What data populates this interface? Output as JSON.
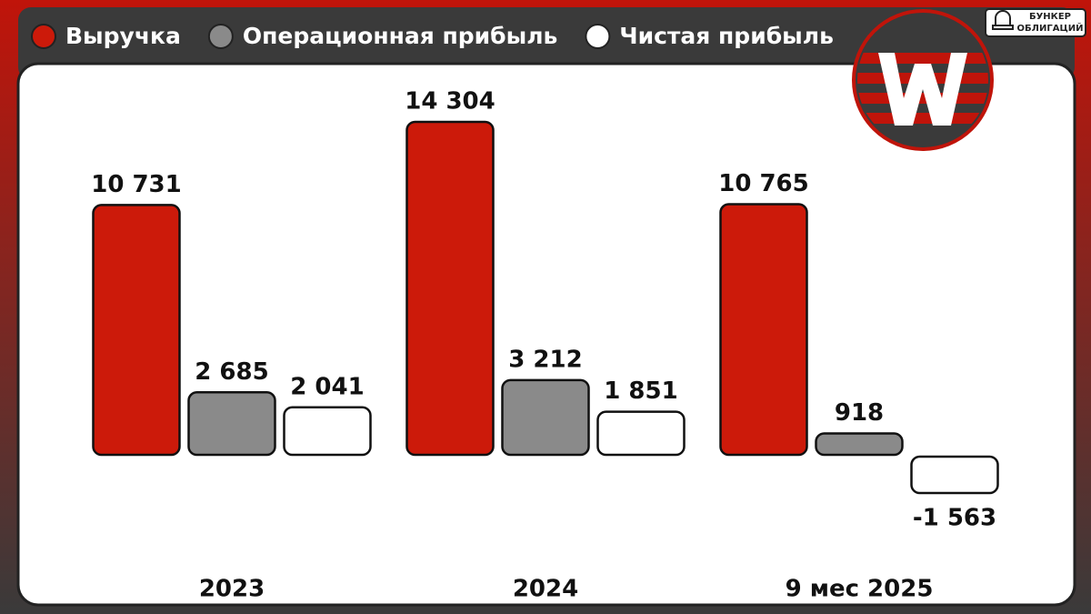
{
  "chart_data": {
    "type": "bar",
    "categories": [
      "2023",
      "2024",
      "9 мес 2025"
    ],
    "series": [
      {
        "name": "Выручка",
        "color": "#cc1a0a",
        "values": [
          10731,
          14304,
          10765
        ],
        "value_labels": [
          "10 731",
          "14 304",
          "10 765"
        ]
      },
      {
        "name": "Операционная прибыль",
        "color": "#8a8a8a",
        "values": [
          2685,
          3212,
          918
        ],
        "value_labels": [
          "2 685",
          "3 212",
          "918"
        ]
      },
      {
        "name": "Чистая прибыль",
        "color": "#ffffff",
        "values": [
          2041,
          1851,
          -1563
        ],
        "value_labels": [
          "2 041",
          "1 851",
          "-1 563"
        ]
      }
    ]
  },
  "brand": {
    "line1": "БУНКЕР",
    "line2": "ОБЛИГАЦИЙ"
  }
}
